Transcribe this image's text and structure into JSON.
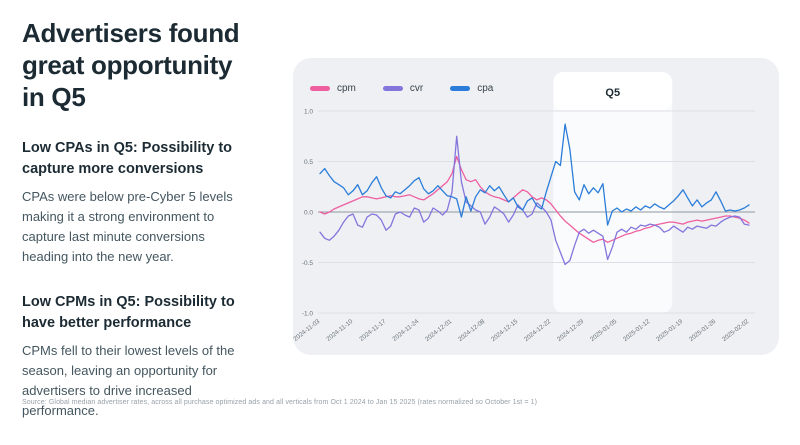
{
  "slide": {
    "title": "Advertisers found\ngreat opportunity\nin Q5",
    "sections": [
      {
        "heading": "Low CPAs in Q5: Possibility to\ncapture more conversions",
        "body": "CPAs were below pre-Cyber 5 levels\nmaking it a strong environment to\ncapture last minute conversions\nheading into the new year."
      },
      {
        "heading": "Low CPMs in Q5: Possibility to\nhave better performance",
        "body": "CPMs fell to their lowest levels of the\nseason, leaving an opportunity for\nadvertisers to drive increased\nperformance."
      }
    ],
    "source": "Source: Global median advertiser rates, across all purchase optimized ads and all verticals from Oct 1 2024 to Jan 15 2025 (rates normalized so October 1st = 1)"
  },
  "chart_data": {
    "type": "line",
    "x_start": "2024-11-03",
    "x_step_days": 1,
    "x_count": 92,
    "x_tick_every": 7,
    "x_tick_labels": [
      "2024-11-03",
      "2024-11-10",
      "2024-11-17",
      "2024-11-24",
      "2024-12-01",
      "2024-12-08",
      "2024-12-15",
      "2024-12-22",
      "2024-12-29",
      "2025-01-05",
      "2025-01-12",
      "2025-01-19",
      "2025-01-26",
      "2025-02-02"
    ],
    "y_ticks": [
      1.0,
      0.5,
      0.0,
      -0.5,
      -1.0
    ],
    "ylim": [
      -1.0,
      1.0
    ],
    "grid": true,
    "legend_position": "top-left",
    "annotation": {
      "label": "Q5",
      "start_index": 49.5,
      "end_index": 74.7
    },
    "series": [
      {
        "name": "cpm",
        "color": "#ef5fa0",
        "values": [
          0.0,
          -0.02,
          0.0,
          0.03,
          0.05,
          0.07,
          0.09,
          0.11,
          0.13,
          0.15,
          0.15,
          0.14,
          0.13,
          0.14,
          0.15,
          0.16,
          0.15,
          0.15,
          0.16,
          0.17,
          0.15,
          0.13,
          0.12,
          0.15,
          0.18,
          0.22,
          0.26,
          0.3,
          0.38,
          0.55,
          0.42,
          0.32,
          0.3,
          0.32,
          0.25,
          0.2,
          0.17,
          0.15,
          0.14,
          0.12,
          0.1,
          0.14,
          0.18,
          0.22,
          0.2,
          0.15,
          0.12,
          0.14,
          0.12,
          0.08,
          0.02,
          -0.04,
          -0.09,
          -0.13,
          -0.17,
          -0.21,
          -0.24,
          -0.27,
          -0.3,
          -0.28,
          -0.27,
          -0.3,
          -0.28,
          -0.26,
          -0.24,
          -0.22,
          -0.21,
          -0.19,
          -0.18,
          -0.16,
          -0.15,
          -0.13,
          -0.12,
          -0.11,
          -0.1,
          -0.1,
          -0.11,
          -0.12,
          -0.1,
          -0.09,
          -0.08,
          -0.09,
          -0.08,
          -0.07,
          -0.06,
          -0.05,
          -0.04,
          -0.04,
          -0.05,
          -0.06,
          -0.08,
          -0.11
        ]
      },
      {
        "name": "cvr",
        "color": "#8276dd",
        "values": [
          -0.2,
          -0.26,
          -0.28,
          -0.24,
          -0.18,
          -0.1,
          -0.04,
          -0.02,
          -0.13,
          -0.15,
          -0.05,
          -0.02,
          -0.03,
          -0.08,
          -0.18,
          -0.14,
          -0.02,
          0.0,
          -0.03,
          -0.05,
          0.04,
          0.02,
          -0.1,
          -0.06,
          0.04,
          0.01,
          -0.03,
          0.02,
          0.2,
          0.75,
          0.3,
          0.1,
          0.06,
          0.02,
          0.0,
          -0.12,
          -0.05,
          0.05,
          0.02,
          -0.02,
          -0.1,
          -0.03,
          0.07,
          0.02,
          -0.05,
          -0.02,
          0.09,
          0.05,
          0.0,
          -0.08,
          -0.28,
          -0.4,
          -0.52,
          -0.48,
          -0.33,
          -0.2,
          -0.17,
          -0.21,
          -0.18,
          -0.21,
          -0.24,
          -0.47,
          -0.35,
          -0.2,
          -0.17,
          -0.2,
          -0.15,
          -0.17,
          -0.13,
          -0.14,
          -0.12,
          -0.13,
          -0.15,
          -0.2,
          -0.18,
          -0.14,
          -0.17,
          -0.2,
          -0.15,
          -0.17,
          -0.14,
          -0.15,
          -0.16,
          -0.13,
          -0.14,
          -0.1,
          -0.07,
          -0.05,
          -0.04,
          -0.05,
          -0.12,
          -0.13
        ]
      },
      {
        "name": "cpa",
        "color": "#2b7dd9",
        "values": [
          0.38,
          0.43,
          0.36,
          0.3,
          0.27,
          0.24,
          0.17,
          0.21,
          0.27,
          0.17,
          0.21,
          0.29,
          0.35,
          0.24,
          0.16,
          0.14,
          0.2,
          0.18,
          0.22,
          0.26,
          0.31,
          0.34,
          0.23,
          0.18,
          0.21,
          0.26,
          0.21,
          0.16,
          0.15,
          0.13,
          -0.05,
          0.15,
          0.01,
          0.15,
          0.22,
          0.19,
          0.26,
          0.21,
          0.25,
          0.17,
          0.1,
          0.14,
          0.05,
          0.02,
          0.11,
          0.14,
          0.06,
          0.03,
          0.2,
          0.35,
          0.5,
          0.46,
          0.87,
          0.62,
          0.2,
          0.12,
          0.27,
          0.18,
          0.24,
          0.19,
          0.28,
          -0.13,
          0.01,
          0.04,
          0.0,
          0.03,
          0.01,
          0.05,
          0.02,
          0.06,
          0.04,
          0.08,
          0.05,
          0.03,
          0.07,
          0.11,
          0.16,
          0.22,
          0.14,
          0.06,
          0.12,
          0.05,
          0.09,
          0.12,
          0.2,
          0.11,
          0.01,
          0.02,
          0.01,
          0.02,
          0.04,
          0.07
        ]
      }
    ]
  }
}
